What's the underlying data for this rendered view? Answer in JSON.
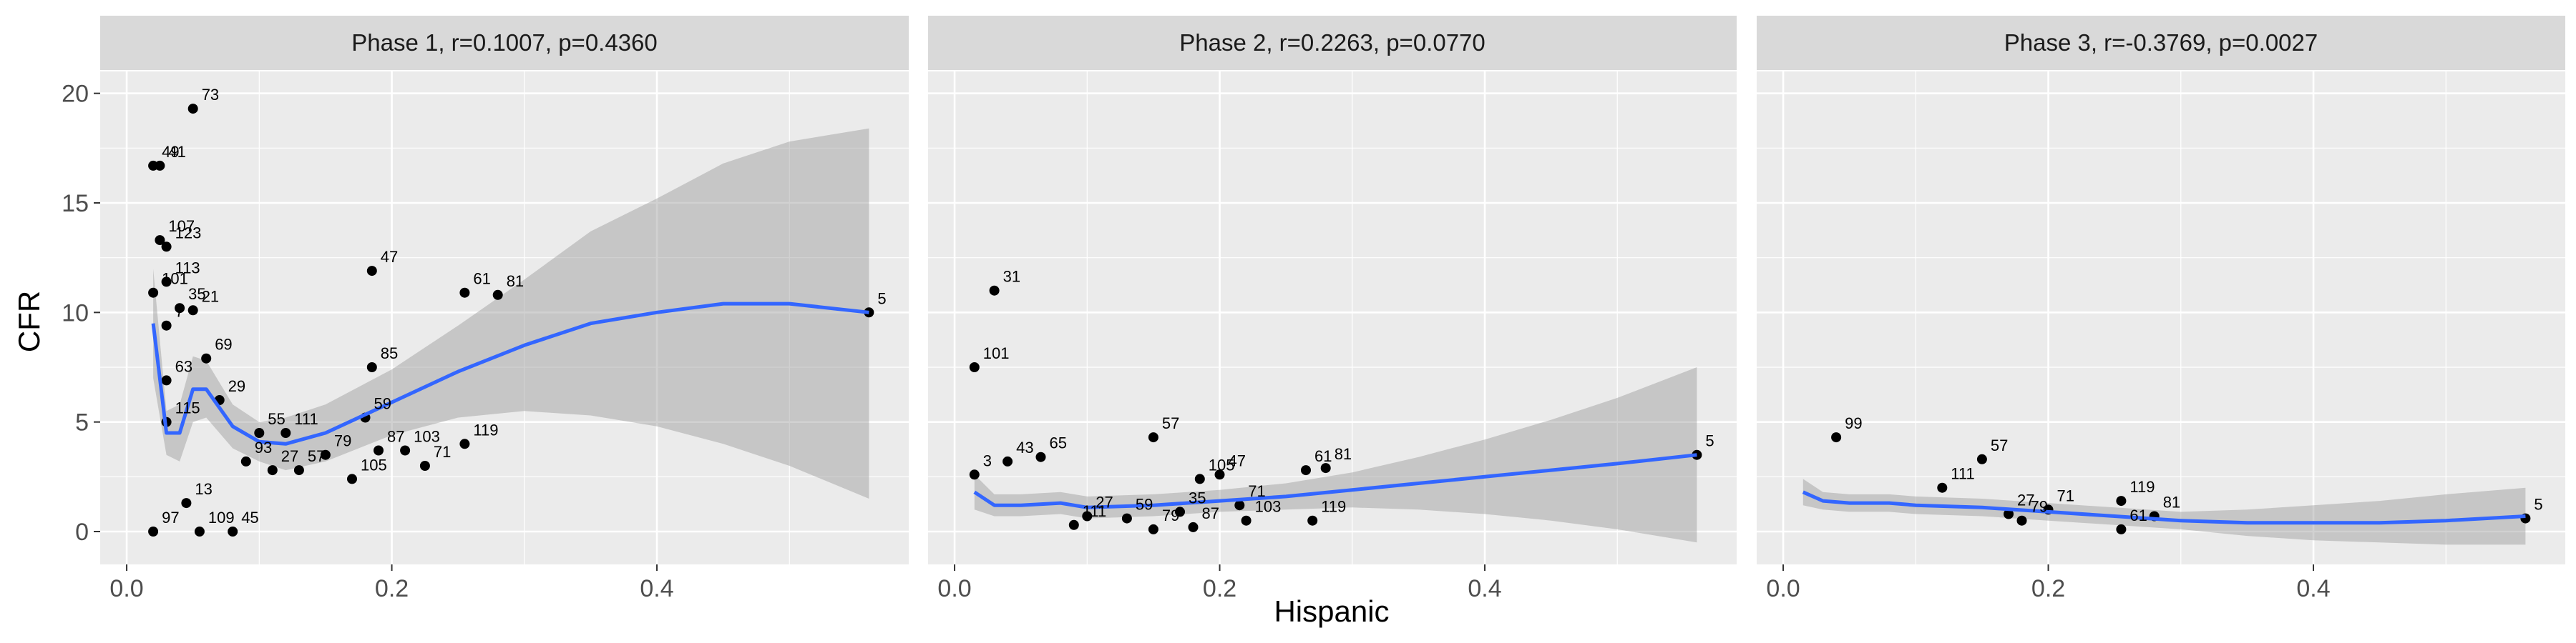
{
  "chart_data": {
    "type": "scatter",
    "xlabel": "Hispanic",
    "ylabel": "CFR",
    "xlim": [
      -0.02,
      0.59
    ],
    "ylim": [
      -1.5,
      21
    ],
    "x_ticks": [
      0.0,
      0.2,
      0.4
    ],
    "x_tick_labels": [
      "0.0",
      "0.2",
      "0.4"
    ],
    "y_ticks": [
      0,
      5,
      10,
      15,
      20
    ],
    "y_tick_labels": [
      "0",
      "5",
      "10",
      "15",
      "20"
    ],
    "grid": true,
    "legend": "none",
    "colors": {
      "point": "#000000",
      "smooth": "#3366ff",
      "band": "#999999",
      "panel_bg": "#ebebeb",
      "strip_bg": "#d9d9d9"
    },
    "panels": [
      {
        "title": "Phase 1, r=0.1007, p=0.4360",
        "points": [
          [
            0.05,
            19.3,
            "73"
          ],
          [
            0.025,
            16.7,
            "41"
          ],
          [
            0.02,
            16.7,
            "49"
          ],
          [
            0.025,
            13.3,
            "107"
          ],
          [
            0.03,
            13.0,
            "123"
          ],
          [
            0.03,
            11.4,
            "113"
          ],
          [
            0.02,
            10.9,
            "101"
          ],
          [
            0.05,
            10.1,
            "21"
          ],
          [
            0.04,
            10.2,
            "35"
          ],
          [
            0.03,
            9.4,
            "7"
          ],
          [
            0.06,
            7.9,
            "69"
          ],
          [
            0.03,
            6.9,
            "63"
          ],
          [
            0.07,
            6.0,
            "29"
          ],
          [
            0.03,
            5.0,
            "115"
          ],
          [
            0.1,
            4.5,
            "55"
          ],
          [
            0.12,
            4.5,
            "111"
          ],
          [
            0.15,
            3.5,
            "79"
          ],
          [
            0.09,
            3.2,
            "93"
          ],
          [
            0.11,
            2.8,
            "27"
          ],
          [
            0.13,
            2.8,
            "57"
          ],
          [
            0.045,
            1.3,
            "13"
          ],
          [
            0.17,
            2.4,
            "105"
          ],
          [
            0.185,
            11.9,
            "47"
          ],
          [
            0.255,
            10.9,
            "61"
          ],
          [
            0.28,
            10.8,
            "81"
          ],
          [
            0.185,
            7.5,
            "85"
          ],
          [
            0.18,
            5.2,
            "59"
          ],
          [
            0.19,
            3.7,
            "87"
          ],
          [
            0.21,
            3.7,
            "103"
          ],
          [
            0.225,
            3.0,
            "71"
          ],
          [
            0.255,
            4.0,
            "119"
          ],
          [
            0.56,
            10.0,
            "5"
          ],
          [
            0.02,
            0.0,
            "97"
          ],
          [
            0.055,
            0.0,
            "109"
          ],
          [
            0.08,
            0.0,
            "45"
          ]
        ],
        "smooth": {
          "x": [
            0.02,
            0.03,
            0.04,
            0.05,
            0.06,
            0.08,
            0.1,
            0.12,
            0.15,
            0.2,
            0.25,
            0.3,
            0.35,
            0.4,
            0.45,
            0.5,
            0.56
          ],
          "y": [
            9.5,
            4.5,
            4.5,
            6.5,
            6.5,
            4.8,
            4.1,
            4.0,
            4.5,
            5.9,
            7.3,
            8.5,
            9.5,
            10.0,
            10.4,
            10.4,
            10.0
          ],
          "lower": [
            7.0,
            3.5,
            3.2,
            5.0,
            5.2,
            3.8,
            3.2,
            2.8,
            3.2,
            4.4,
            5.2,
            5.5,
            5.3,
            4.8,
            4.0,
            3.0,
            1.5
          ],
          "upper": [
            12.0,
            5.5,
            5.8,
            8.0,
            7.8,
            5.8,
            5.0,
            5.2,
            5.8,
            7.4,
            9.4,
            11.5,
            13.7,
            15.2,
            16.8,
            17.8,
            18.4
          ]
        }
      },
      {
        "title": "Phase 2, r=0.2263, p=0.0770",
        "points": [
          [
            0.03,
            11.0,
            "31"
          ],
          [
            0.015,
            7.5,
            "101"
          ],
          [
            0.04,
            3.2,
            "43"
          ],
          [
            0.065,
            3.4,
            "65"
          ],
          [
            0.015,
            2.6,
            "3"
          ],
          [
            0.15,
            4.3,
            "57"
          ],
          [
            0.185,
            2.4,
            "105"
          ],
          [
            0.2,
            2.6,
            "47"
          ],
          [
            0.265,
            2.8,
            "61"
          ],
          [
            0.28,
            2.9,
            "81"
          ],
          [
            0.1,
            0.7,
            "27"
          ],
          [
            0.13,
            0.6,
            "59"
          ],
          [
            0.17,
            0.9,
            "35"
          ],
          [
            0.215,
            1.2,
            "71"
          ],
          [
            0.09,
            0.3,
            "111"
          ],
          [
            0.15,
            0.1,
            "79"
          ],
          [
            0.18,
            0.2,
            "87"
          ],
          [
            0.22,
            0.5,
            "103"
          ],
          [
            0.27,
            0.5,
            "119"
          ],
          [
            0.56,
            3.5,
            "5"
          ]
        ],
        "smooth": {
          "x": [
            0.015,
            0.03,
            0.05,
            0.08,
            0.1,
            0.15,
            0.2,
            0.25,
            0.3,
            0.35,
            0.4,
            0.45,
            0.5,
            0.56
          ],
          "y": [
            1.8,
            1.2,
            1.2,
            1.3,
            1.1,
            1.2,
            1.4,
            1.6,
            1.9,
            2.2,
            2.5,
            2.8,
            3.1,
            3.5
          ],
          "lower": [
            1.0,
            0.7,
            0.7,
            0.8,
            0.6,
            0.7,
            0.9,
            1.0,
            1.1,
            1.0,
            0.8,
            0.5,
            0.1,
            -0.5
          ],
          "upper": [
            2.6,
            1.7,
            1.7,
            1.8,
            1.6,
            1.7,
            1.9,
            2.2,
            2.7,
            3.4,
            4.2,
            5.1,
            6.1,
            7.5
          ]
        }
      },
      {
        "title": "Phase 3, r=-0.3769, p=0.0027",
        "points": [
          [
            0.04,
            4.3,
            "99"
          ],
          [
            0.15,
            3.3,
            "57"
          ],
          [
            0.12,
            2.0,
            "111"
          ],
          [
            0.2,
            1.0,
            "71"
          ],
          [
            0.255,
            1.4,
            "119"
          ],
          [
            0.17,
            0.8,
            "27"
          ],
          [
            0.18,
            0.5,
            "79"
          ],
          [
            0.255,
            0.1,
            "61"
          ],
          [
            0.28,
            0.7,
            "81"
          ],
          [
            0.56,
            0.6,
            "5"
          ]
        ],
        "smooth": {
          "x": [
            0.015,
            0.03,
            0.05,
            0.08,
            0.1,
            0.15,
            0.2,
            0.25,
            0.3,
            0.35,
            0.4,
            0.45,
            0.5,
            0.56
          ],
          "y": [
            1.8,
            1.4,
            1.3,
            1.3,
            1.2,
            1.1,
            0.9,
            0.7,
            0.5,
            0.4,
            0.4,
            0.4,
            0.5,
            0.7
          ],
          "lower": [
            1.2,
            1.0,
            0.9,
            0.9,
            0.8,
            0.7,
            0.5,
            0.3,
            0.1,
            -0.2,
            -0.4,
            -0.5,
            -0.6,
            -0.6
          ],
          "upper": [
            2.4,
            1.8,
            1.7,
            1.7,
            1.6,
            1.5,
            1.3,
            1.1,
            0.9,
            1.0,
            1.2,
            1.4,
            1.7,
            2.0
          ]
        }
      }
    ]
  }
}
